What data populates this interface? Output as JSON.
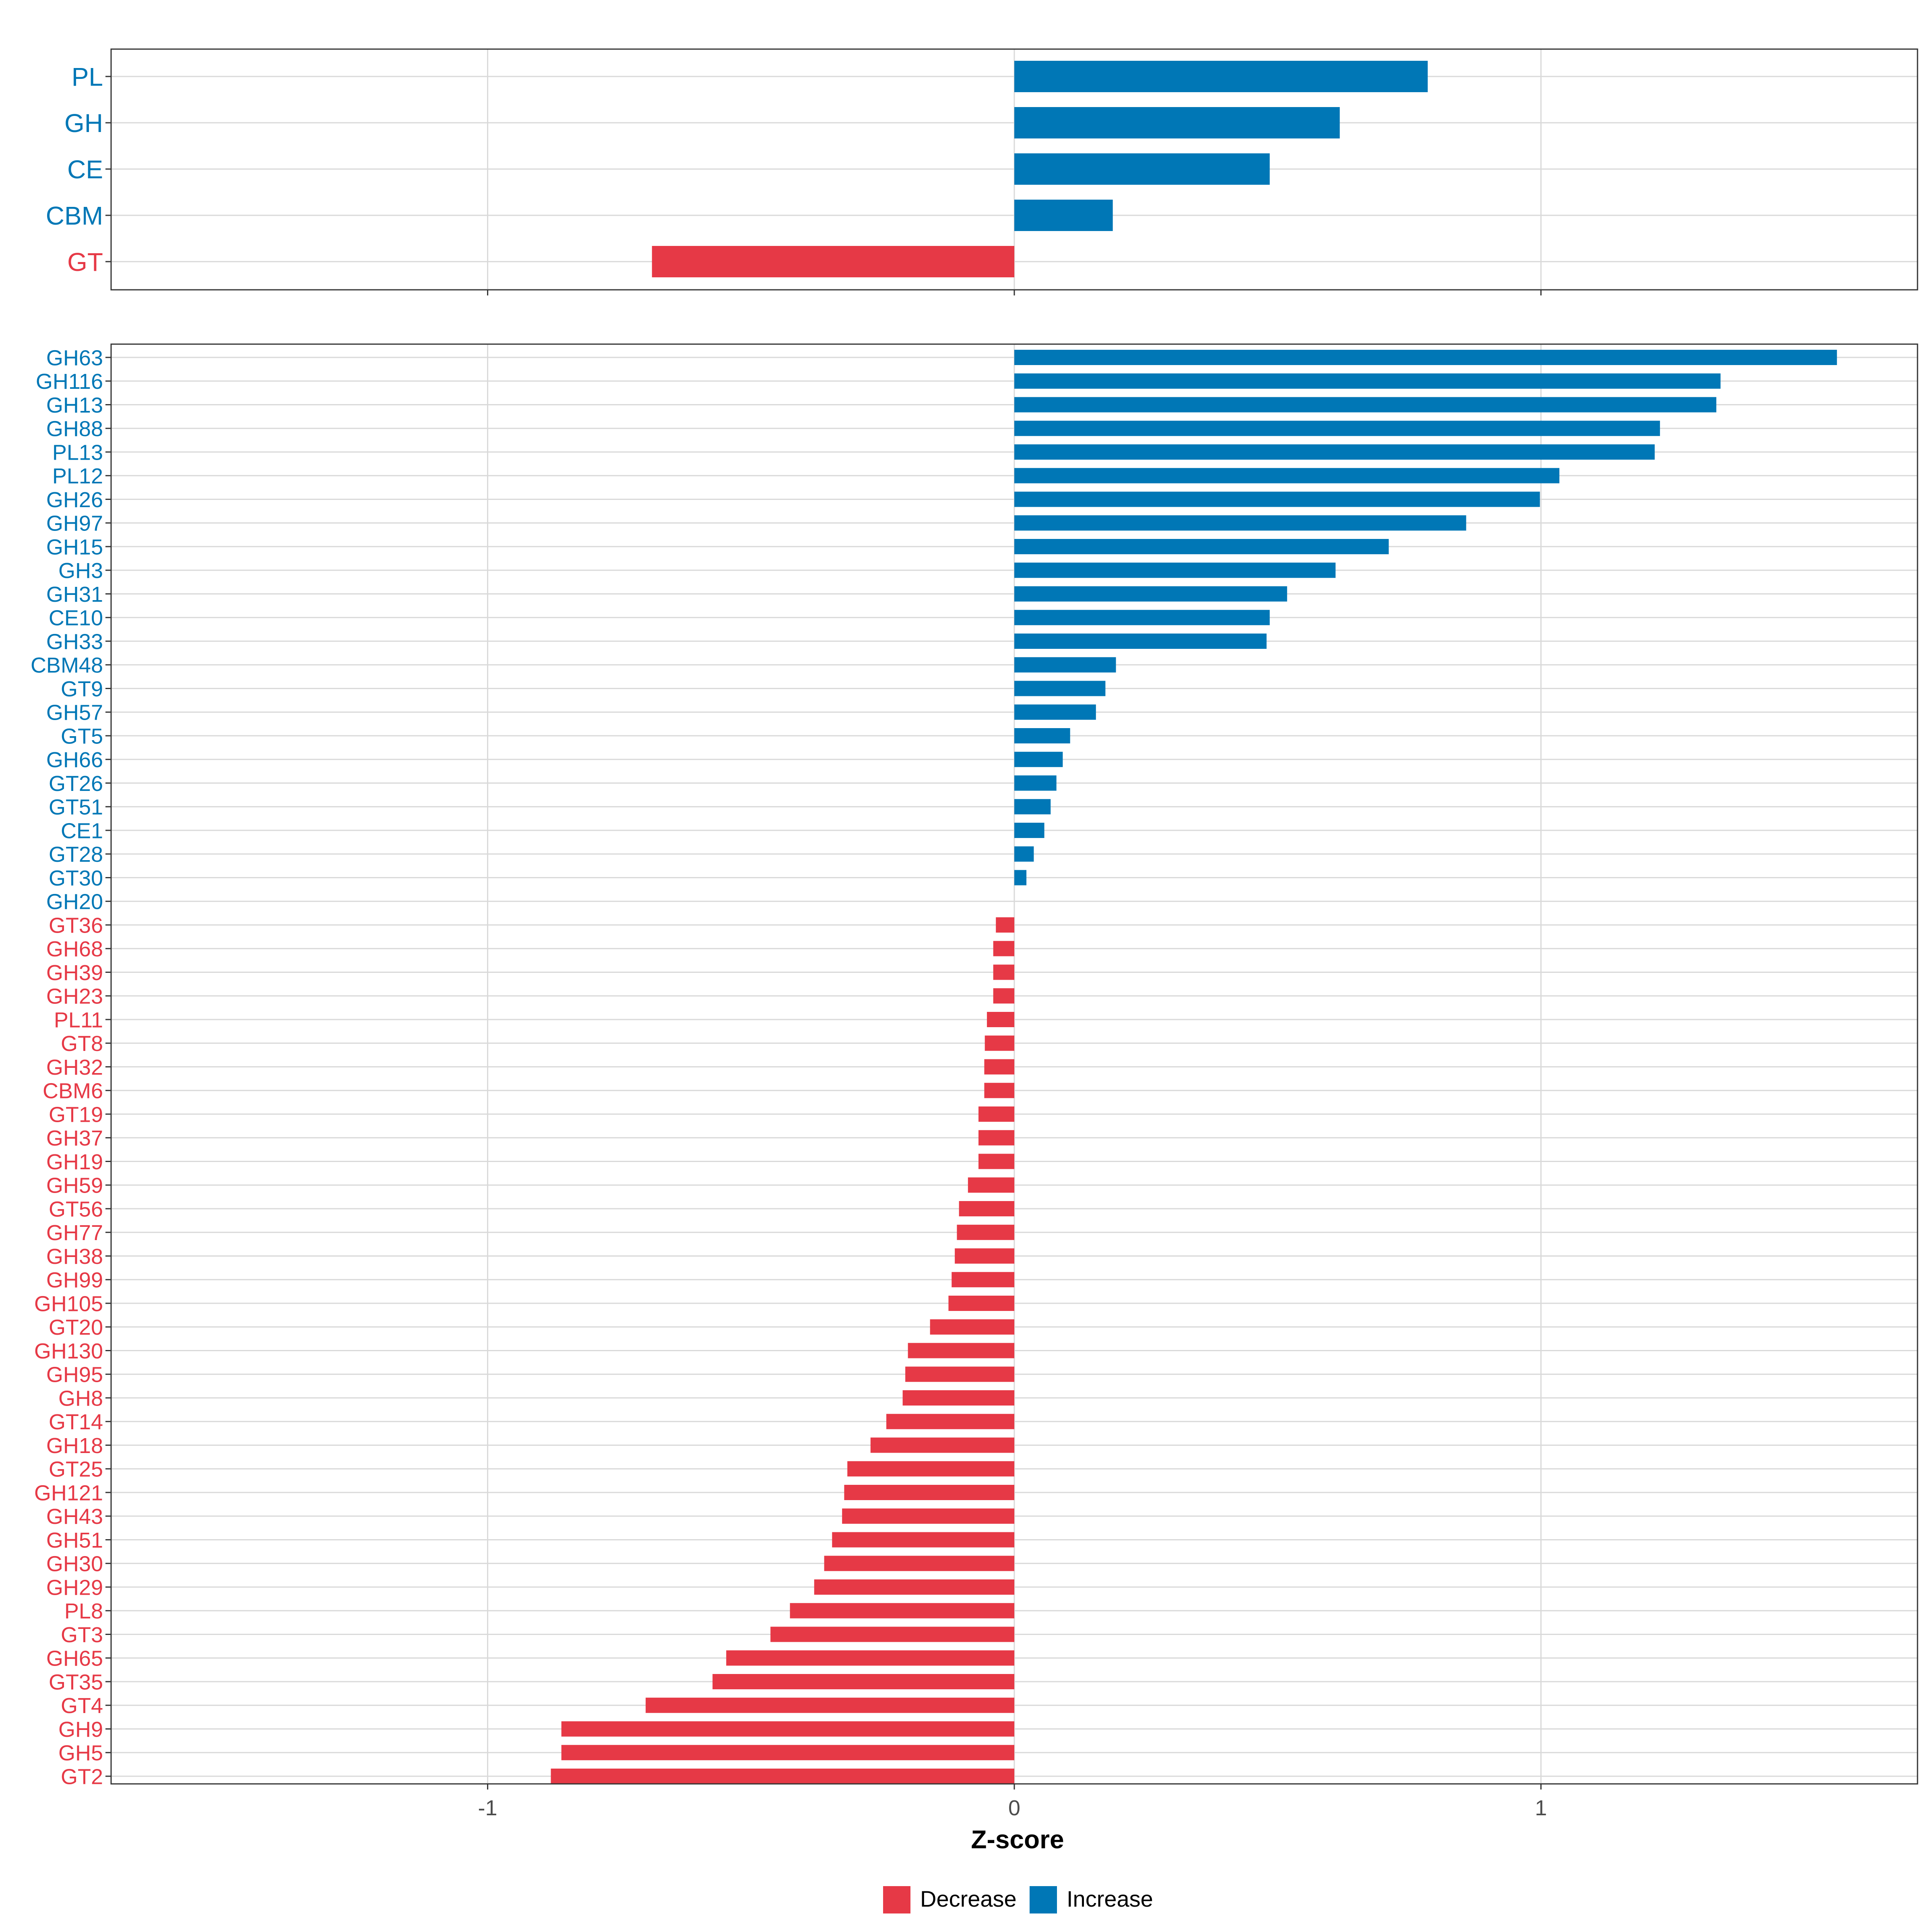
{
  "chart_data": [
    {
      "type": "bar",
      "orientation": "horizontal",
      "panel": "top",
      "categories": [
        "PL",
        "GH",
        "CE",
        "CBM",
        "GT"
      ],
      "values": [
        0.785,
        0.618,
        0.485,
        0.187,
        -0.688
      ],
      "xlim": [
        -1.715,
        1.715
      ],
      "xticks": [
        -1,
        0,
        1
      ],
      "grid": true
    },
    {
      "type": "bar",
      "orientation": "horizontal",
      "panel": "bottom",
      "categories": [
        "GH63",
        "GH116",
        "GH13",
        "GH88",
        "PL13",
        "PL12",
        "GH26",
        "GH97",
        "GH15",
        "GH3",
        "GH31",
        "CE10",
        "GH33",
        "CBM48",
        "GT9",
        "GH57",
        "GT5",
        "GH66",
        "GT26",
        "GT51",
        "CE1",
        "GT28",
        "GT30",
        "GH20",
        "GT36",
        "GH68",
        "GH39",
        "GH23",
        "PL11",
        "GT8",
        "GH32",
        "CBM6",
        "GT19",
        "GH37",
        "GH19",
        "GH59",
        "GT56",
        "GH77",
        "GH38",
        "GH99",
        "GH105",
        "GT20",
        "GH130",
        "GH95",
        "GH8",
        "GT14",
        "GH18",
        "GT25",
        "GH121",
        "GH43",
        "GH51",
        "GH30",
        "GH29",
        "PL8",
        "GT3",
        "GH65",
        "GT35",
        "GT4",
        "GH9",
        "GH5",
        "GT2"
      ],
      "values": [
        1.562,
        1.341,
        1.333,
        1.226,
        1.216,
        1.035,
        0.998,
        0.858,
        0.711,
        0.61,
        0.518,
        0.485,
        0.479,
        0.193,
        0.173,
        0.155,
        0.106,
        0.092,
        0.08,
        0.069,
        0.057,
        0.037,
        0.023,
        0.0,
        -0.035,
        -0.04,
        -0.04,
        -0.04,
        -0.052,
        -0.056,
        -0.057,
        -0.057,
        -0.068,
        -0.068,
        -0.068,
        -0.088,
        -0.105,
        -0.109,
        -0.113,
        -0.119,
        -0.125,
        -0.16,
        -0.202,
        -0.207,
        -0.212,
        -0.243,
        -0.273,
        -0.317,
        -0.323,
        -0.327,
        -0.346,
        -0.361,
        -0.38,
        -0.426,
        -0.463,
        -0.547,
        -0.573,
        -0.7,
        -0.86,
        -0.86,
        -0.88
      ],
      "xlim": [
        -1.715,
        1.715
      ],
      "xticks": [
        -1,
        0,
        1
      ],
      "xtick_labels": [
        "-1",
        "0",
        "1"
      ],
      "xlabel": "Z-score",
      "ylabel": "",
      "grid": true
    }
  ],
  "legend": {
    "placement": "bottom-center",
    "items": [
      {
        "label": "Decrease",
        "color": "#e63946"
      },
      {
        "label": "Increase",
        "color": "#0077b6"
      }
    ]
  },
  "colors": {
    "increase": "#0077b6",
    "decrease": "#e63946",
    "grid": "#d9d9d9",
    "axis_text": "#4d4d4d",
    "panel_border": "#333333"
  }
}
